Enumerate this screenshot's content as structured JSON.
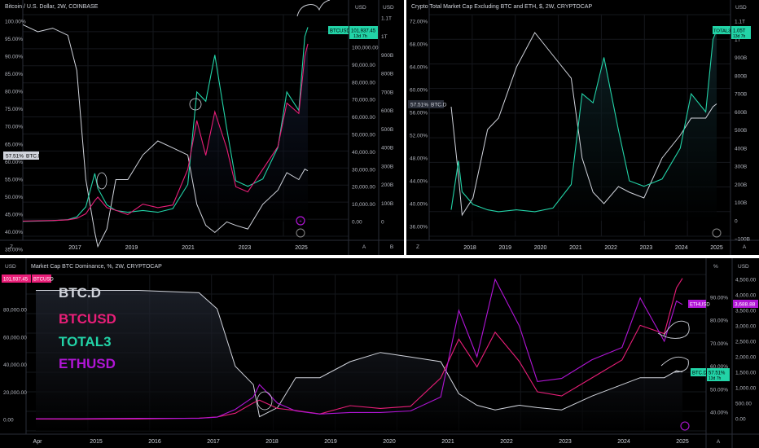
{
  "colors": {
    "btcd": "#d1d4dc",
    "btcusd": "#e91e78",
    "total3": "#22d3a7",
    "ethusd": "#b115d6",
    "bg": "#000000",
    "grid": "#1c1e24"
  },
  "panels": {
    "top_left": {
      "title": "Bitcoin / U.S. Dollar, 2W, COINBASE",
      "pct_unit": "%",
      "usd_unit": "USD",
      "usd2_unit": "USD",
      "pct_ticks": [
        "100.00%",
        "95.00%",
        "90.00%",
        "85.00%",
        "80.00%",
        "75.00%",
        "70.00%",
        "65.00%",
        "60.00%",
        "55.00%",
        "50.00%",
        "45.00%",
        "40.00%",
        "35.00%"
      ],
      "usd_ticks": [
        "100,000.00",
        "90,000.00",
        "80,000.00",
        "70,000.00",
        "60,000.00",
        "50,000.00",
        "40,000.00",
        "30,000.00",
        "20,000.00",
        "10,000.00",
        "0.00"
      ],
      "usd2_ticks": [
        "1.1T",
        "1T",
        "900B",
        "800B",
        "700B",
        "600B",
        "500B",
        "400B",
        "300B",
        "200B",
        "100B",
        "0"
      ],
      "x_ticks": [
        "2017",
        "2019",
        "2021",
        "2023",
        "2025"
      ],
      "btcd_label": {
        "value": "57.51%",
        "name": "BTC.D"
      },
      "btcusd_label": {
        "name": "BTCUSD",
        "value": "101,937.45",
        "sub": "13d 7h"
      },
      "corner": {
        "z": "Z",
        "a": "A",
        "b": "B"
      }
    },
    "top_right": {
      "title": "Crypto Total Market Cap Excluding BTC and ETH, $, 2W, CRYPTOCAP",
      "pct_unit": "%",
      "usd_unit": "USD",
      "pct_ticks": [
        "72.00%",
        "68.00%",
        "64.00%",
        "60.00%",
        "56.00%",
        "52.00%",
        "48.00%",
        "44.00%",
        "40.00%",
        "36.00%"
      ],
      "usd_ticks": [
        "1.1T",
        "1T",
        "900B",
        "800B",
        "700B",
        "600B",
        "500B",
        "400B",
        "300B",
        "200B",
        "100B",
        "0",
        "−100B"
      ],
      "x_ticks": [
        "2018",
        "2019",
        "2020",
        "2021",
        "2022",
        "2023",
        "2024",
        "2025"
      ],
      "btcd_label": {
        "value": "57.51%",
        "name": "BTC.D"
      },
      "total3_label": {
        "name": "TOTAL3",
        "value": "1.05T",
        "sub": "13d 7h"
      },
      "corner": {
        "z": "Z",
        "a": "A"
      }
    },
    "bottom": {
      "title": "Market Cap BTC Dominance, %, 2W, CRYPTOCAP",
      "pct_unit": "%",
      "usd_unit": "USD",
      "left_ticks": [
        "80,000.00",
        "60,000.00",
        "40,000.00",
        "20,000.00",
        "0.00"
      ],
      "pct_ticks": [
        "90.00%",
        "80.00%",
        "70.00%",
        "60.00%",
        "50.00%",
        "40.00%"
      ],
      "usd_ticks": [
        "4,500.00",
        "4,000.00",
        "3,500.00",
        "3,000.00",
        "2,500.00",
        "2,000.00",
        "1,500.00",
        "1,000.00",
        "500.00",
        "0.00"
      ],
      "x_ticks": [
        "Apr",
        "2015",
        "2016",
        "2017",
        "2018",
        "2019",
        "2020",
        "2021",
        "2022",
        "2023",
        "2024",
        "2025"
      ],
      "btcusd_label": {
        "value": "101,937.45",
        "name": "BTCUSD"
      },
      "ethusd_label": {
        "name": "ETHUSD",
        "value": "3,688.88"
      },
      "btcd_label": {
        "name": "BTC.D",
        "value": "57.51%",
        "sub": "13d 7h"
      },
      "legend": [
        "BTC.D",
        "BTCUSD",
        "TOTAL3",
        "ETHUSD"
      ],
      "corner": {
        "a": "A"
      }
    }
  },
  "chart_data": [
    {
      "type": "line",
      "title": "Bitcoin / U.S. Dollar, 2W, COINBASE",
      "x": [
        2015.5,
        2016,
        2016.5,
        2017,
        2017.3,
        2017.6,
        2017.9,
        2018.0,
        2018.3,
        2018.6,
        2019,
        2019.5,
        2020,
        2020.5,
        2021.0,
        2021.3,
        2021.6,
        2021.9,
        2022.3,
        2022.6,
        2023,
        2023.5,
        2024.0,
        2024.3,
        2024.7,
        2024.9,
        2025.0
      ],
      "series": [
        {
          "name": "BTC.D",
          "axis": "percent",
          "values": [
            99,
            97,
            98,
            96,
            86,
            55,
            40,
            36,
            41,
            55,
            55,
            62,
            66,
            64,
            62,
            48,
            42,
            40,
            43,
            42,
            41,
            48,
            52,
            57,
            55,
            58,
            57.5
          ]
        },
        {
          "name": "BTCUSD",
          "axis": "usd",
          "values": [
            300,
            400,
            600,
            1000,
            1800,
            4500,
            12000,
            14000,
            8000,
            6500,
            4000,
            10000,
            8000,
            9500,
            30000,
            58000,
            38000,
            63000,
            42000,
            20000,
            17000,
            30000,
            43000,
            68000,
            62000,
            95000,
            101937.45
          ]
        },
        {
          "name": "TOTAL3",
          "axis": "usd2",
          "values": [
            1,
            2,
            5,
            10,
            25,
            80,
            260,
            180,
            90,
            60,
            50,
            60,
            50,
            70,
            200,
            700,
            650,
            900,
            500,
            220,
            190,
            230,
            400,
            700,
            600,
            1000,
            1050
          ]
        }
      ]
    },
    {
      "type": "line",
      "title": "Crypto Total Market Cap Excluding BTC and ETH, $, 2W, CRYPTOCAP",
      "x": [
        2017.7,
        2017.9,
        2018.0,
        2018.3,
        2018.7,
        2019,
        2019.5,
        2020,
        2020.5,
        2021.0,
        2021.3,
        2021.6,
        2021.9,
        2022.3,
        2022.6,
        2023,
        2023.5,
        2024.0,
        2024.3,
        2024.7,
        2024.9,
        2025.0
      ],
      "series": [
        {
          "name": "BTC.D",
          "axis": "percent",
          "values": [
            57,
            45,
            38,
            41,
            53,
            55,
            64,
            70,
            66,
            62,
            48,
            42,
            40,
            43,
            42,
            41,
            48,
            52,
            55,
            55,
            57,
            57.5
          ]
        },
        {
          "name": "TOTAL3",
          "axis": "usd",
          "values": [
            60,
            330,
            160,
            90,
            60,
            50,
            60,
            50,
            70,
            200,
            700,
            650,
            900,
            500,
            220,
            190,
            230,
            400,
            700,
            600,
            1000,
            1050
          ]
        }
      ]
    },
    {
      "type": "line",
      "title": "Market Cap BTC Dominance, %, 2W, CRYPTOCAP",
      "x": [
        2014.3,
        2015,
        2016,
        2017.0,
        2017.3,
        2017.6,
        2017.9,
        2018.0,
        2018.3,
        2018.6,
        2019,
        2019.5,
        2020,
        2020.5,
        2021.0,
        2021.3,
        2021.6,
        2021.9,
        2022.3,
        2022.6,
        2023,
        2023.5,
        2024.0,
        2024.3,
        2024.7,
        2024.9,
        2025.0
      ],
      "series": [
        {
          "name": "BTC.D",
          "axis": "percent",
          "values": [
            93,
            93,
            93,
            92,
            85,
            60,
            52,
            38,
            42,
            55,
            55,
            62,
            66,
            64,
            62,
            48,
            43,
            41,
            43,
            42,
            41,
            47,
            52,
            55,
            55,
            58,
            57.5
          ]
        },
        {
          "name": "BTCUSD",
          "axis": "usd_left",
          "values": [
            300,
            250,
            400,
            1000,
            1800,
            4500,
            12000,
            14000,
            8000,
            6500,
            4000,
            10000,
            8000,
            9500,
            30000,
            58000,
            38000,
            63000,
            42000,
            20000,
            17000,
            30000,
            43000,
            68000,
            62000,
            95000,
            101937.45
          ]
        },
        {
          "name": "ETHUSD",
          "axis": "usd_right",
          "values": [
            0,
            1,
            10,
            10,
            50,
            300,
            700,
            1100,
            500,
            250,
            150,
            200,
            200,
            250,
            700,
            3500,
            2000,
            4500,
            3000,
            1200,
            1300,
            1900,
            2300,
            3900,
            2500,
            3800,
            3688.88
          ]
        }
      ]
    }
  ]
}
